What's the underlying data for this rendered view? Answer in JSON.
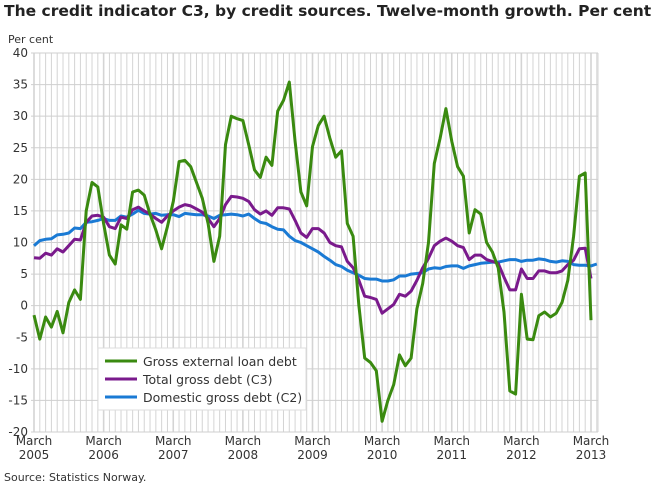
{
  "title": "The credit indicator C3, by credit sources. Twelve-month growth. Per cent",
  "source": "Source: Statistics Norway.",
  "chart_data": {
    "type": "line",
    "title": "The credit indicator C3, by credit sources. Twelve-month growth. Per cent",
    "ylabel": "Per cent",
    "xlabel": "",
    "ylim": [
      -20,
      40
    ],
    "yticks": [
      -20,
      -15,
      -10,
      -5,
      0,
      5,
      10,
      15,
      20,
      25,
      30,
      35,
      40
    ],
    "x_start": "2005-03",
    "x_frequency": "monthly",
    "xtick_labels": [
      [
        "March",
        "2005"
      ],
      [
        "March",
        "2006"
      ],
      [
        "March",
        "2007"
      ],
      [
        "March",
        "2008"
      ],
      [
        "March",
        "2009"
      ],
      [
        "March",
        "2010"
      ],
      [
        "March",
        "2011"
      ],
      [
        "March",
        "2012"
      ],
      [
        "March",
        "2013"
      ]
    ],
    "grid": true,
    "legend_placement": "bottom-left",
    "series": [
      {
        "name": "Gross external loan debt",
        "color": "#3a8a10",
        "values": [
          -1.5,
          -5.3,
          -1.8,
          -3.4,
          -0.9,
          -4.3,
          0.5,
          2.5,
          1.0,
          15,
          19.5,
          18.8,
          13,
          8,
          6.6,
          12.8,
          12.1,
          18,
          18.3,
          17.5,
          14.5,
          12,
          9,
          12.5,
          16.5,
          22.8,
          23,
          22,
          19.5,
          17,
          13,
          7,
          11,
          25.5,
          30,
          29.6,
          29.3,
          25.5,
          21.5,
          20.3,
          23.5,
          22.2,
          30.8,
          32.5,
          35.4,
          26,
          18,
          15.8,
          25.2,
          28.5,
          30,
          26.5,
          23.5,
          24.5,
          13,
          11,
          0,
          -8.3,
          -9,
          -10.3,
          -18.3,
          -15,
          -12.5,
          -7.8,
          -9.5,
          -8.3,
          -0.5,
          3.5,
          10,
          22.5,
          26.5,
          31.2,
          26,
          22,
          20.5,
          11.5,
          15.2,
          14.5,
          10,
          8.5,
          6,
          -1,
          -13.5,
          -14,
          1.8,
          -5.3,
          -5.4,
          -1.6,
          -1.0,
          -1.8,
          -1.2,
          0.5,
          4,
          11,
          20.5,
          21,
          -2.3
        ]
      },
      {
        "name": "Total gross debt (C3)",
        "color": "#7a1a8c",
        "values": [
          7.6,
          7.5,
          8.3,
          8.0,
          9.0,
          8.5,
          9.5,
          10.5,
          10.4,
          13.2,
          14.2,
          14.3,
          14.0,
          12.5,
          12.2,
          14.0,
          13.8,
          15.2,
          15.6,
          15.0,
          14.5,
          13.8,
          13.2,
          14.2,
          15.0,
          15.6,
          16.0,
          15.8,
          15.3,
          14.8,
          13.8,
          12.5,
          13.8,
          16.0,
          17.3,
          17.2,
          17.0,
          16.5,
          15.2,
          14.5,
          15.0,
          14.3,
          15.5,
          15.5,
          15.3,
          13.5,
          11.5,
          10.8,
          12.2,
          12.2,
          11.5,
          10.0,
          9.5,
          9.3,
          7.0,
          6.0,
          4.0,
          1.5,
          1.3,
          1.0,
          -1.2,
          -0.5,
          0.2,
          1.8,
          1.5,
          2.3,
          4.0,
          6.0,
          7.5,
          9.5,
          10.2,
          10.7,
          10.2,
          9.5,
          9.2,
          7.3,
          8.0,
          8.0,
          7.3,
          7.0,
          6.7,
          4.5,
          2.5,
          2.5,
          5.8,
          4.3,
          4.3,
          5.5,
          5.5,
          5.2,
          5.2,
          5.5,
          6.5,
          7.2,
          9.0,
          9.1,
          4.3
        ]
      },
      {
        "name": "Domestic gross debt (C2)",
        "color": "#1a7ad4",
        "values": [
          9.5,
          10.3,
          10.5,
          10.6,
          11.2,
          11.3,
          11.5,
          12.3,
          12.2,
          13.2,
          13.3,
          13.5,
          13.8,
          13.5,
          13.5,
          14.2,
          14.0,
          14.5,
          15.1,
          14.6,
          14.5,
          14.6,
          14.3,
          14.4,
          14.4,
          14.1,
          14.6,
          14.5,
          14.4,
          14.4,
          14.2,
          13.8,
          14.3,
          14.4,
          14.5,
          14.4,
          14.2,
          14.5,
          13.8,
          13.2,
          13.0,
          12.5,
          12.1,
          12.0,
          11.0,
          10.3,
          10.0,
          9.5,
          9.0,
          8.5,
          7.8,
          7.2,
          6.5,
          6.2,
          5.6,
          5.2,
          4.8,
          4.3,
          4.2,
          4.2,
          3.9,
          3.9,
          4.1,
          4.7,
          4.7,
          5.0,
          5.1,
          5.2,
          5.8,
          6.0,
          5.9,
          6.2,
          6.3,
          6.3,
          5.9,
          6.3,
          6.5,
          6.7,
          6.8,
          6.9,
          6.9,
          7.1,
          7.3,
          7.3,
          7.0,
          7.2,
          7.2,
          7.4,
          7.3,
          7.0,
          6.9,
          7.1,
          7.0,
          6.5,
          6.4,
          6.4,
          6.3,
          6.6
        ]
      }
    ]
  }
}
